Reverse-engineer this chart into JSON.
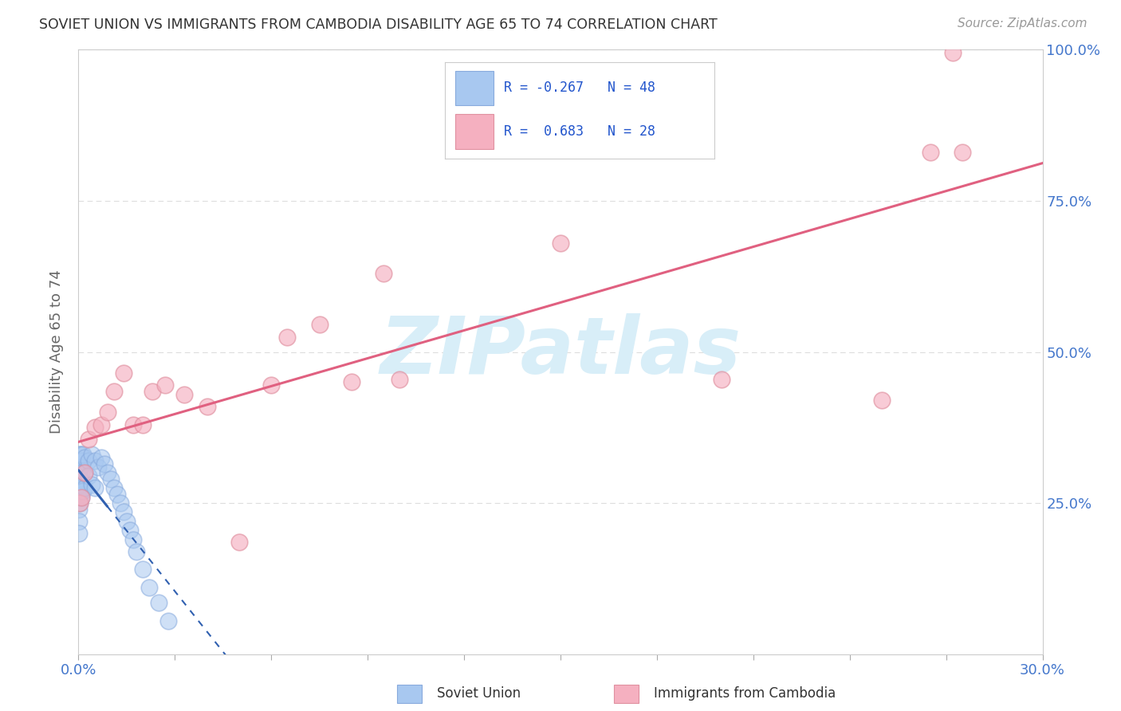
{
  "title": "SOVIET UNION VS IMMIGRANTS FROM CAMBODIA DISABILITY AGE 65 TO 74 CORRELATION CHART",
  "source": "Source: ZipAtlas.com",
  "ylabel": "Disability Age 65 to 74",
  "legend_label1": "Soviet Union",
  "legend_label2": "Immigrants from Cambodia",
  "color_blue": "#A8C8F0",
  "color_blue_edge": "#88AADD",
  "color_blue_line": "#3060B0",
  "color_pink": "#F5B0C0",
  "color_pink_edge": "#E090A0",
  "color_pink_line": "#E06080",
  "color_axis_text": "#4477CC",
  "color_legend_text": "#2255CC",
  "watermark_color": "#D8EEF8",
  "background_color": "#FFFFFF",
  "grid_color": "#DDDDDD",
  "xlim": [
    0.0,
    0.3
  ],
  "ylim": [
    0.0,
    1.0
  ],
  "soviet_x": [
    0.0001,
    0.0001,
    0.0001,
    0.0001,
    0.0001,
    0.0001,
    0.0001,
    0.0001,
    0.0003,
    0.0003,
    0.0003,
    0.0003,
    0.0003,
    0.0006,
    0.0006,
    0.0006,
    0.0006,
    0.001,
    0.001,
    0.001,
    0.001,
    0.0015,
    0.0015,
    0.002,
    0.002,
    0.002,
    0.003,
    0.003,
    0.004,
    0.004,
    0.005,
    0.005,
    0.006,
    0.007,
    0.008,
    0.009,
    0.01,
    0.011,
    0.012,
    0.013,
    0.014,
    0.015,
    0.016,
    0.017,
    0.018,
    0.02,
    0.022,
    0.025,
    0.028
  ],
  "soviet_y": [
    0.32,
    0.3,
    0.28,
    0.27,
    0.26,
    0.24,
    0.22,
    0.2,
    0.33,
    0.31,
    0.29,
    0.27,
    0.25,
    0.33,
    0.31,
    0.29,
    0.27,
    0.32,
    0.3,
    0.28,
    0.26,
    0.33,
    0.27,
    0.325,
    0.3,
    0.275,
    0.32,
    0.295,
    0.33,
    0.28,
    0.32,
    0.275,
    0.31,
    0.325,
    0.315,
    0.3,
    0.29,
    0.275,
    0.265,
    0.25,
    0.235,
    0.22,
    0.205,
    0.19,
    0.17,
    0.14,
    0.11,
    0.085,
    0.055
  ],
  "cambodia_x": [
    0.0005,
    0.001,
    0.002,
    0.003,
    0.005,
    0.007,
    0.009,
    0.011,
    0.014,
    0.017,
    0.02,
    0.023,
    0.027,
    0.033,
    0.04,
    0.05,
    0.06,
    0.065,
    0.075,
    0.085,
    0.095,
    0.1,
    0.15,
    0.2,
    0.25,
    0.265,
    0.272,
    0.275
  ],
  "cambodia_y": [
    0.25,
    0.26,
    0.3,
    0.355,
    0.375,
    0.38,
    0.4,
    0.435,
    0.465,
    0.38,
    0.38,
    0.435,
    0.445,
    0.43,
    0.41,
    0.185,
    0.445,
    0.525,
    0.545,
    0.45,
    0.63,
    0.455,
    0.68,
    0.455,
    0.42,
    0.83,
    0.995,
    0.83
  ]
}
